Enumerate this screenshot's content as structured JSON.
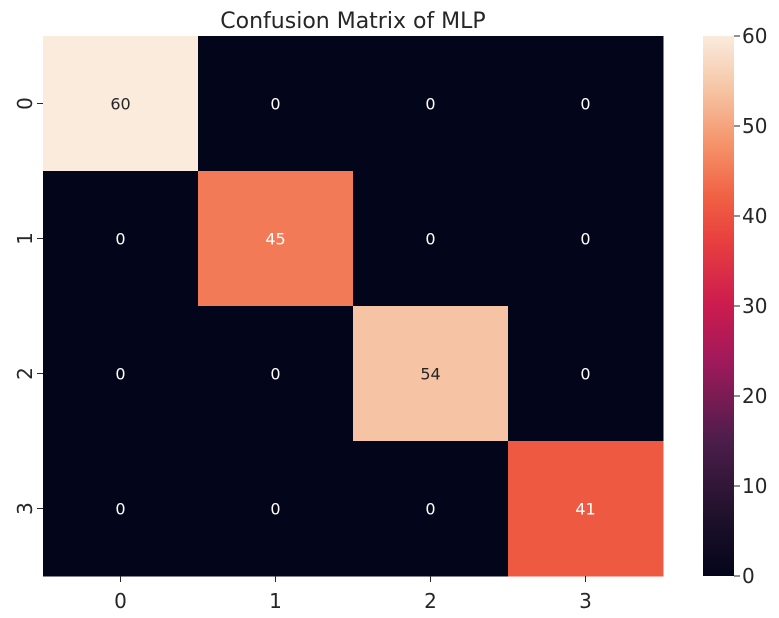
{
  "chart_data": {
    "type": "heatmap",
    "title": "Confusion Matrix of MLP",
    "xlabel": "",
    "ylabel": "",
    "x_categories": [
      "0",
      "1",
      "2",
      "3"
    ],
    "y_categories": [
      "0",
      "1",
      "2",
      "3"
    ],
    "values": [
      [
        60,
        0,
        0,
        0
      ],
      [
        0,
        45,
        0,
        0
      ],
      [
        0,
        0,
        54,
        0
      ],
      [
        0,
        0,
        0,
        41
      ]
    ],
    "annotations": true,
    "colorbar": {
      "min": 0,
      "max": 60,
      "ticks": [
        "0",
        "10",
        "20",
        "30",
        "40",
        "50",
        "60"
      ],
      "colormap": "rocket",
      "placement": "right"
    },
    "grid": false
  }
}
